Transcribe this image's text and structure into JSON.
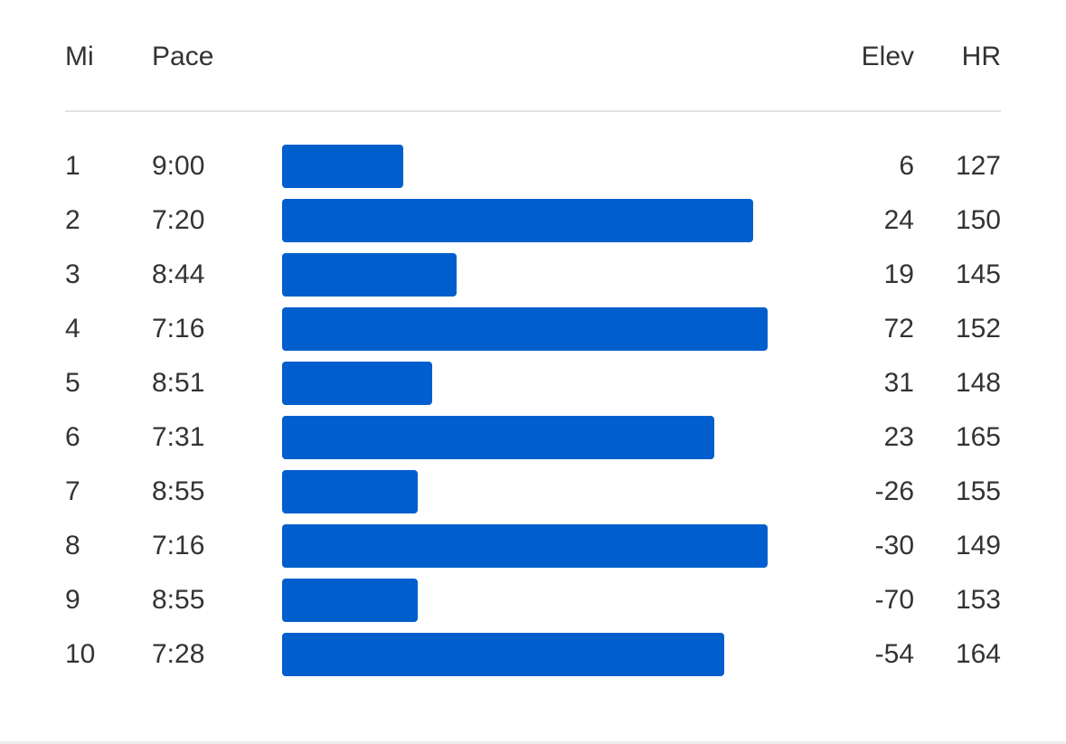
{
  "header": {
    "mi_label": "Mi",
    "pace_label": "Pace",
    "elev_label": "Elev",
    "hr_label": "HR"
  },
  "bar_color": "#005fcc",
  "splits": [
    {
      "mi": "1",
      "pace": "9:00",
      "elev": "6",
      "hr": "127",
      "speed_fraction": 0.25
    },
    {
      "mi": "2",
      "pace": "7:20",
      "elev": "24",
      "hr": "150",
      "speed_fraction": 0.97
    },
    {
      "mi": "3",
      "pace": "8:44",
      "elev": "19",
      "hr": "145",
      "speed_fraction": 0.36
    },
    {
      "mi": "4",
      "pace": "7:16",
      "elev": "72",
      "hr": "152",
      "speed_fraction": 1.0
    },
    {
      "mi": "5",
      "pace": "8:51",
      "elev": "31",
      "hr": "148",
      "speed_fraction": 0.31
    },
    {
      "mi": "6",
      "pace": "7:31",
      "elev": "23",
      "hr": "165",
      "speed_fraction": 0.89
    },
    {
      "mi": "7",
      "pace": "8:55",
      "elev": "-26",
      "hr": "155",
      "speed_fraction": 0.28
    },
    {
      "mi": "8",
      "pace": "7:16",
      "elev": "-30",
      "hr": "149",
      "speed_fraction": 1.0
    },
    {
      "mi": "9",
      "pace": "8:55",
      "elev": "-70",
      "hr": "153",
      "speed_fraction": 0.28
    },
    {
      "mi": "10",
      "pace": "7:28",
      "elev": "-54",
      "hr": "164",
      "speed_fraction": 0.91
    }
  ]
}
